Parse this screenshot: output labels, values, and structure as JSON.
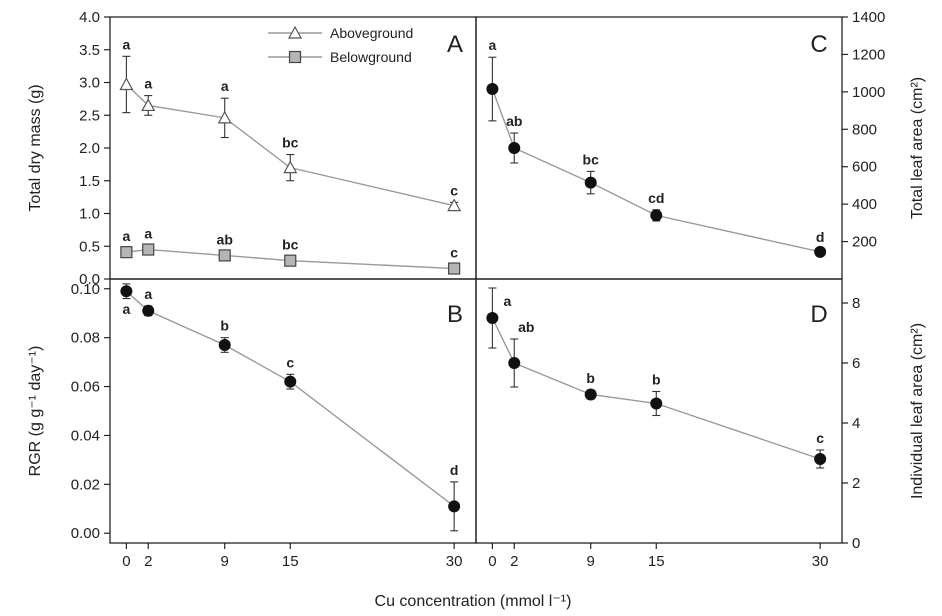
{
  "figure": {
    "xlabel": "Cu concentration (mmol l⁻¹)",
    "panel_labels": [
      "A",
      "B",
      "C",
      "D"
    ],
    "legend": {
      "aboveground": "Aboveground",
      "belowground": "Belowground"
    }
  },
  "chart_data": [
    {
      "panel": "A",
      "type": "line",
      "x": [
        0,
        2,
        9,
        15,
        30
      ],
      "xticks": [
        "0",
        "2",
        "9",
        "15",
        "30"
      ],
      "xlim": [
        -1.5,
        32
      ],
      "ylabel": "Total dry mass (g)",
      "ylim": [
        0,
        4.0
      ],
      "yticks": [
        "0.0",
        "0.5",
        "1.0",
        "1.5",
        "2.0",
        "2.5",
        "3.0",
        "3.5",
        "4.0"
      ],
      "legend_position": "top-center",
      "series": [
        {
          "name": "Aboveground",
          "marker": "open-triangle",
          "values": [
            2.97,
            2.65,
            2.46,
            1.7,
            1.12
          ],
          "errors": [
            0.43,
            0.15,
            0.3,
            0.2,
            0.05
          ],
          "letters": [
            "a",
            "a",
            "a",
            "bc",
            "c"
          ]
        },
        {
          "name": "Belowground",
          "marker": "gray-square",
          "values": [
            0.41,
            0.45,
            0.36,
            0.28,
            0.16
          ],
          "errors": [
            0.04,
            0.04,
            0.03,
            0.03,
            0.02
          ],
          "letters": [
            "a",
            "a",
            "ab",
            "bc",
            "c"
          ]
        }
      ]
    },
    {
      "panel": "B",
      "type": "line",
      "x": [
        0,
        2,
        9,
        15,
        30
      ],
      "xticks": [
        "0",
        "2",
        "9",
        "15",
        "30"
      ],
      "xlim": [
        -1.5,
        32
      ],
      "ylabel": "RGR (g g⁻¹ day⁻¹)",
      "ylim": [
        -0.004,
        0.104
      ],
      "yticks": [
        "0.00",
        "0.02",
        "0.04",
        "0.06",
        "0.08",
        "0.10"
      ],
      "series": [
        {
          "marker": "filled-circle",
          "values": [
            0.099,
            0.091,
            0.077,
            0.062,
            0.011
          ],
          "errors": [
            0.003,
            0.002,
            0.003,
            0.003,
            0.01
          ],
          "letters": [
            "a",
            "a",
            "b",
            "c",
            "d"
          ]
        }
      ]
    },
    {
      "panel": "C",
      "type": "line",
      "x": [
        0,
        2,
        9,
        15,
        30
      ],
      "xticks": [
        "0",
        "2",
        "9",
        "15",
        "30"
      ],
      "xlim": [
        -1.5,
        32
      ],
      "ylabel": "Total leaf area (cm²)",
      "ylim": [
        0,
        1400
      ],
      "yticks": [
        "200",
        "400",
        "600",
        "800",
        "1000",
        "1200",
        "1400"
      ],
      "series": [
        {
          "marker": "filled-circle",
          "values": [
            1015,
            700,
            515,
            340,
            145
          ],
          "errors": [
            170,
            80,
            60,
            30,
            15
          ],
          "letters": [
            "a",
            "ab",
            "bc",
            "cd",
            "d"
          ]
        }
      ]
    },
    {
      "panel": "D",
      "type": "line",
      "x": [
        0,
        2,
        9,
        15,
        30
      ],
      "xticks": [
        "0",
        "2",
        "9",
        "15",
        "30"
      ],
      "xlim": [
        -1.5,
        32
      ],
      "ylabel": "Individual leaf area (cm²)",
      "ylim": [
        0,
        8.8
      ],
      "yticks": [
        "0",
        "2",
        "4",
        "6",
        "8"
      ],
      "series": [
        {
          "marker": "filled-circle",
          "values": [
            7.5,
            6.0,
            4.95,
            4.65,
            2.8
          ],
          "errors": [
            1.0,
            0.8,
            0.15,
            0.4,
            0.3
          ],
          "letters": [
            "a",
            "ab",
            "b",
            "b",
            "c"
          ]
        }
      ]
    }
  ]
}
